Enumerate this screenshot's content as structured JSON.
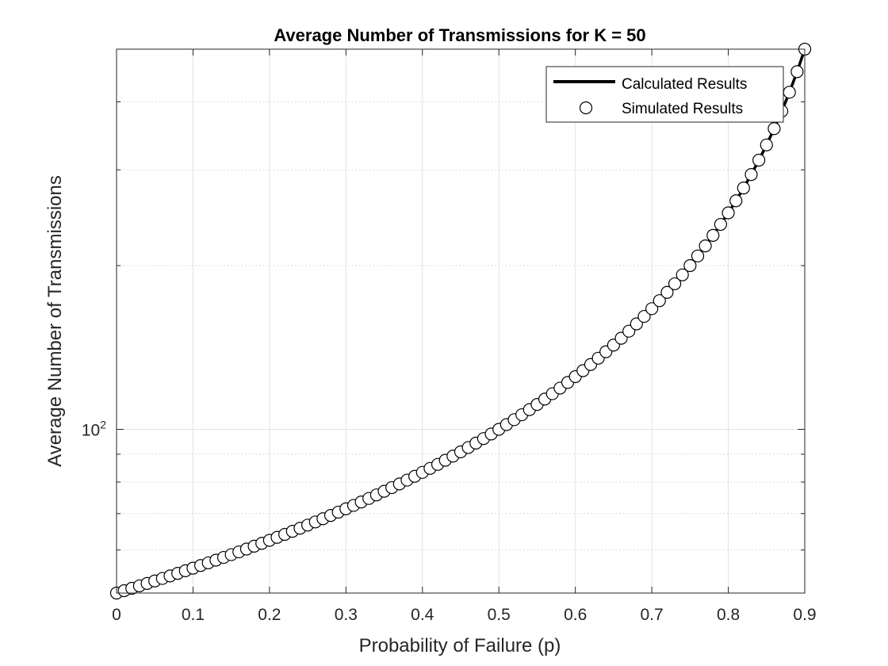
{
  "chart_data": {
    "type": "line",
    "title": "Average Number of Transmissions for K = 50",
    "xlabel": "Probability of Failure (p)",
    "ylabel": "Average Number of Transmissions",
    "xlim": [
      0,
      0.9
    ],
    "ylim": [
      50,
      500
    ],
    "yscale": "log",
    "grid": true,
    "legend_location": "top-right",
    "x_ticks": [
      0,
      0.1,
      0.2,
      0.3,
      0.4,
      0.5,
      0.6,
      0.7,
      0.8,
      0.9
    ],
    "x_tick_labels": [
      "0",
      "0.1",
      "0.2",
      "0.3",
      "0.4",
      "0.5",
      "0.6",
      "0.7",
      "0.8",
      "0.9"
    ],
    "y_major_tick": 100,
    "y_major_tick_label": {
      "base": "10",
      "exp": "2"
    },
    "y_minor_ticks": [
      50,
      60,
      70,
      80,
      90,
      200,
      300,
      400,
      500
    ],
    "series": [
      {
        "name": "Calculated Results",
        "style": "line",
        "color": "#000000",
        "formula": "50/(1-p)",
        "p_start": 0,
        "p_end": 0.9,
        "p_step": 0.01
      },
      {
        "name": "Simulated Results",
        "style": "markers",
        "marker": "circle",
        "color": "#000000",
        "formula": "50/(1-p)",
        "p_start": 0,
        "p_end": 0.9,
        "p_step": 0.01
      }
    ]
  }
}
